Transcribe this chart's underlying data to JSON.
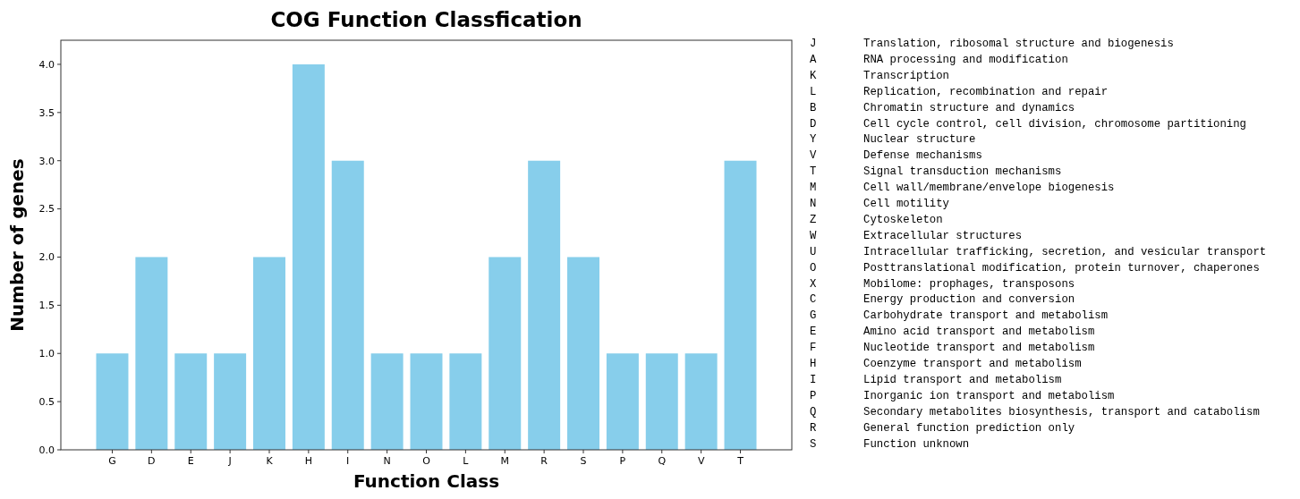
{
  "chart_data": {
    "type": "bar",
    "title": "COG Function Classfication",
    "xlabel": "Function Class",
    "ylabel": "Number of genes",
    "categories": [
      "G",
      "D",
      "E",
      "J",
      "K",
      "H",
      "I",
      "N",
      "O",
      "L",
      "M",
      "R",
      "S",
      "P",
      "Q",
      "V",
      "T"
    ],
    "values": [
      1,
      2,
      1,
      1,
      2,
      4,
      3,
      1,
      1,
      1,
      2,
      3,
      2,
      1,
      1,
      1,
      3
    ],
    "color": "#87ceeb",
    "ylim": [
      0,
      4.25
    ],
    "yticks": [
      {
        "value": 0,
        "label": "0.0"
      },
      {
        "value": 0.5,
        "label": "0.5"
      },
      {
        "value": 1,
        "label": "1.0"
      },
      {
        "value": 1.5,
        "label": "1.5"
      },
      {
        "value": 2,
        "label": "2.0"
      },
      {
        "value": 2.5,
        "label": "2.5"
      },
      {
        "value": 3,
        "label": "3.0"
      },
      {
        "value": 3.5,
        "label": "3.5"
      },
      {
        "value": 4,
        "label": "4.0"
      }
    ],
    "annotations": [
      "J",
      "Translation, ribosomal structure and biogenesis",
      "A",
      "RNA processing and modification",
      "K",
      "Transcription",
      "L",
      "Replication, recombination and repair",
      "B",
      "Chromatin structure and dynamics",
      "D",
      "Cell cycle control, cell division, chromosome partitioning",
      "Y",
      "Nuclear structure",
      "V",
      "Defense mechanisms",
      "T",
      "Signal transduction mechanisms",
      "M",
      "Cell wall/membrane/envelope biogenesis",
      "N",
      "Cell motility",
      "Z",
      "Cytoskeleton",
      "W",
      "Extracellular structures",
      "U",
      "Intracellular trafficking, secretion, and vesicular transport",
      "O",
      "Posttranslational modification, protein turnover, chaperones",
      "X",
      "Mobilome: prophages, transposons",
      "C",
      "Energy production and conversion",
      "G",
      "Carbohydrate transport and metabolism",
      "E",
      "Amino acid transport and metabolism",
      "F",
      "Nucleotide transport and metabolism",
      "H",
      "Coenzyme transport and metabolism",
      "I",
      "Lipid transport and metabolism",
      "P",
      "Inorganic ion transport and metabolism",
      "Q",
      "Secondary metabolites biosynthesis, transport and catabolism",
      "R",
      "General function prediction only",
      "S",
      "Function unknown"
    ],
    "grid": false
  }
}
